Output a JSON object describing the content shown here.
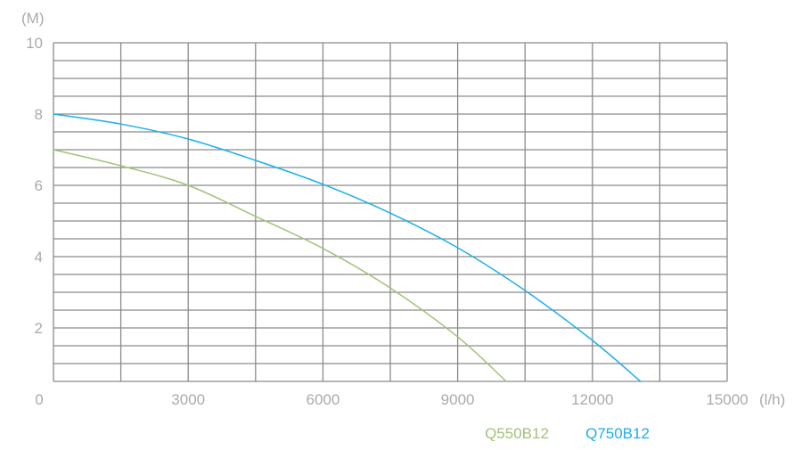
{
  "chart_data": {
    "type": "line",
    "title": "",
    "xlabel": "(l/h)",
    "ylabel": "(M)",
    "xlim": [
      0,
      15000
    ],
    "ylim": [
      0.5,
      10
    ],
    "x_ticks": [
      0,
      3000,
      6000,
      9000,
      12000,
      15000
    ],
    "x_tick_labels": [
      "0",
      "3000",
      "6000",
      "9000",
      "12000",
      "15000"
    ],
    "y_ticks": [
      10,
      8,
      6,
      4,
      2
    ],
    "y_tick_labels": [
      "10",
      "8",
      "6",
      "4",
      "2"
    ],
    "x_grid_step": 1500,
    "y_grid_step": 0.5,
    "grid": true,
    "legend_placement": "bottom-right",
    "series": [
      {
        "name": "Q550B12",
        "color": "#a3c27a",
        "x": [
          0,
          1500,
          3000,
          4500,
          6000,
          7500,
          9000,
          10080
        ],
        "y": [
          7.0,
          6.55,
          6.0,
          5.13,
          4.23,
          3.12,
          1.75,
          0.5
        ]
      },
      {
        "name": "Q750B12",
        "color": "#1ab0ec",
        "x": [
          0,
          1500,
          3000,
          4500,
          6000,
          7500,
          9000,
          10500,
          12000,
          13070
        ],
        "y": [
          8.0,
          7.72,
          7.3,
          6.7,
          6.03,
          5.22,
          4.25,
          3.05,
          1.65,
          0.5
        ]
      }
    ]
  }
}
